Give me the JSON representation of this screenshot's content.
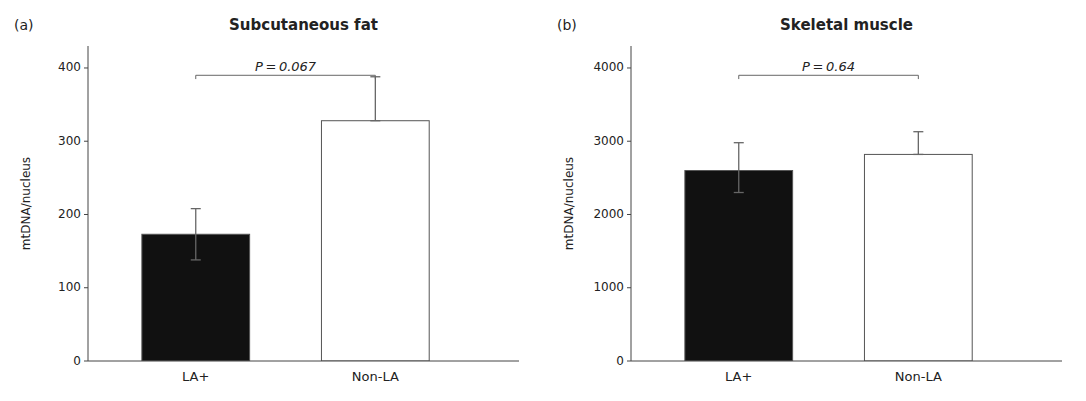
{
  "chart_data": [
    {
      "type": "bar",
      "title": "Subcutaneous fat",
      "panel_label": "(a)",
      "categories": [
        "LA+",
        "Non-LA"
      ],
      "values": [
        173,
        328
      ],
      "error_upper": [
        35,
        60
      ],
      "error_lower": [
        35,
        0
      ],
      "colors": [
        "#111111",
        "#ffffff"
      ],
      "ylabel": "mtDNA/nucleus",
      "ylim": [
        0,
        430
      ],
      "yticks": [
        0,
        100,
        200,
        300,
        400
      ],
      "annotations": [
        "P = 0.067"
      ],
      "grid": false
    },
    {
      "type": "bar",
      "title": "Skeletal muscle",
      "panel_label": "(b)",
      "categories": [
        "LA+",
        "Non-LA"
      ],
      "values": [
        2600,
        2820
      ],
      "error_upper": [
        380,
        310
      ],
      "error_lower": [
        300,
        0
      ],
      "colors": [
        "#111111",
        "#ffffff"
      ],
      "ylabel": "mtDNA/nucleus",
      "ylim": [
        0,
        4300
      ],
      "yticks": [
        0,
        1000,
        2000,
        3000,
        4000
      ],
      "annotations": [
        "P = 0.64"
      ],
      "grid": false
    }
  ]
}
